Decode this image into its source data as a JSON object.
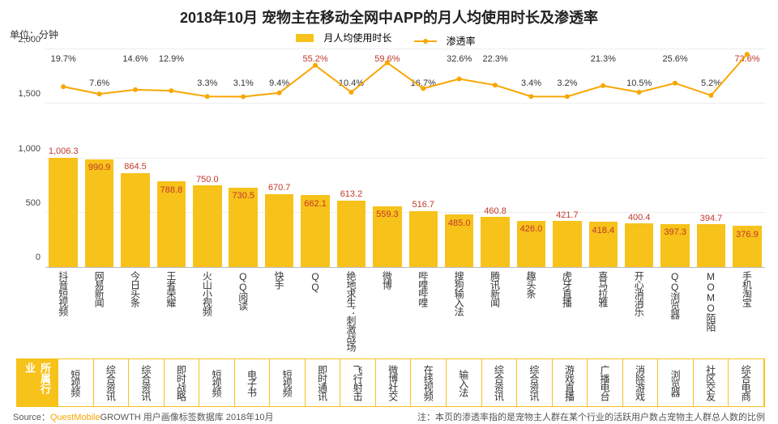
{
  "title": "2018年10月 宠物主在移动全网中APP的月人均使用时长及渗透率",
  "unit_label": "单位：分钟",
  "legend": {
    "bar": "月人均使用时长",
    "line": "渗透率"
  },
  "chart": {
    "type": "bar+line",
    "ylim": [
      0,
      2000
    ],
    "ytick_step": 500,
    "yticks": [
      "0",
      "500",
      "1,000",
      "1,500",
      "2,000"
    ],
    "bar_color": "#f7c21a",
    "line_color": "#f7a700",
    "value_label_color": "#c0392b",
    "pct_label_color": "#333333",
    "grid_color": "#eeeeee",
    "background_color": "#ffffff",
    "title_fontsize": 18,
    "axis_fontsize": 11,
    "line_ymin_pct": 0,
    "line_ymax_pct": 80,
    "points": [
      {
        "app": "抖音短视频",
        "value": 1006.3,
        "value_label": "1,006.3",
        "pct": 19.7,
        "pct_label": "19.7%",
        "pct_row": 0,
        "category": "短视频"
      },
      {
        "app": "网易新闻",
        "value": 990.9,
        "value_label": "990.9",
        "pct": 7.6,
        "pct_label": "7.6%",
        "pct_row": 1,
        "category": "综合资讯"
      },
      {
        "app": "今日头条",
        "value": 864.5,
        "value_label": "864.5",
        "pct": 14.6,
        "pct_label": "14.6%",
        "pct_row": 0,
        "category": "综合资讯"
      },
      {
        "app": "王者荣耀",
        "value": 788.8,
        "value_label": "788.8",
        "pct": 12.9,
        "pct_label": "12.9%",
        "pct_row": 0,
        "category": "即时战略"
      },
      {
        "app": "火山小视频",
        "value": 750.0,
        "value_label": "750.0",
        "pct": 3.3,
        "pct_label": "3.3%",
        "pct_row": 1,
        "category": "短视频"
      },
      {
        "app": "QQ阅读",
        "value": 730.5,
        "value_label": "730.5",
        "pct": 3.1,
        "pct_label": "3.1%",
        "pct_row": 1,
        "category": "电子书"
      },
      {
        "app": "快手",
        "value": 670.7,
        "value_label": "670.7",
        "pct": 9.4,
        "pct_label": "9.4%",
        "pct_row": 1,
        "category": "短视频"
      },
      {
        "app": "QQ",
        "value": 662.1,
        "value_label": "662.1",
        "pct": 55.2,
        "pct_label": "55.2%",
        "pct_row": 0,
        "category": "即时通讯"
      },
      {
        "app": "绝地求生：刺激战场",
        "value": 613.2,
        "value_label": "613.2",
        "pct": 10.4,
        "pct_label": "10.4%",
        "pct_row": 1,
        "category": "飞行射击"
      },
      {
        "app": "微博",
        "value": 559.3,
        "value_label": "559.3",
        "pct": 59.6,
        "pct_label": "59.6%",
        "pct_row": 0,
        "category": "微博社交"
      },
      {
        "app": "哔哩哔哩",
        "value": 516.7,
        "value_label": "516.7",
        "pct": 16.7,
        "pct_label": "16.7%",
        "pct_row": 1,
        "category": "在线视频"
      },
      {
        "app": "搜狗输入法",
        "value": 485.0,
        "value_label": "485.0",
        "pct": 32.6,
        "pct_label": "32.6%",
        "pct_row": 0,
        "category": "输入法"
      },
      {
        "app": "腾讯新闻",
        "value": 460.8,
        "value_label": "460.8",
        "pct": 22.3,
        "pct_label": "22.3%",
        "pct_row": 0,
        "category": "综合资讯"
      },
      {
        "app": "趣头条",
        "value": 426.0,
        "value_label": "426.0",
        "pct": 3.4,
        "pct_label": "3.4%",
        "pct_row": 1,
        "category": "综合资讯"
      },
      {
        "app": "虎牙直播",
        "value": 421.7,
        "value_label": "421.7",
        "pct": 3.2,
        "pct_label": "3.2%",
        "pct_row": 1,
        "category": "游戏直播"
      },
      {
        "app": "喜马拉雅",
        "value": 418.4,
        "value_label": "418.4",
        "pct": 21.3,
        "pct_label": "21.3%",
        "pct_row": 0,
        "category": "广播电台"
      },
      {
        "app": "开心消消乐",
        "value": 400.4,
        "value_label": "400.4",
        "pct": 10.5,
        "pct_label": "10.5%",
        "pct_row": 1,
        "category": "消除游戏"
      },
      {
        "app": "QQ浏览器",
        "value": 397.3,
        "value_label": "397.3",
        "pct": 25.6,
        "pct_label": "25.6%",
        "pct_row": 0,
        "category": "浏览器"
      },
      {
        "app": "MOMO陌陌",
        "value": 394.7,
        "value_label": "394.7",
        "pct": 5.2,
        "pct_label": "5.2%",
        "pct_row": 1,
        "category": "社区交友"
      },
      {
        "app": "手机淘宝",
        "value": 376.9,
        "value_label": "376.9",
        "pct": 73.6,
        "pct_label": "73.6%",
        "pct_row": 0,
        "category": "综合电商"
      }
    ]
  },
  "category_header": "所属行业",
  "source_prefix": "Source：",
  "source_brand": "QuestMobile",
  "source_suffix": "GROWTH 用户画像标签数据库 2018年10月",
  "footnote": "注：本页的渗透率指的是宠物主人群在某个行业的活跃用户数占宠物主人群总人数的比例"
}
